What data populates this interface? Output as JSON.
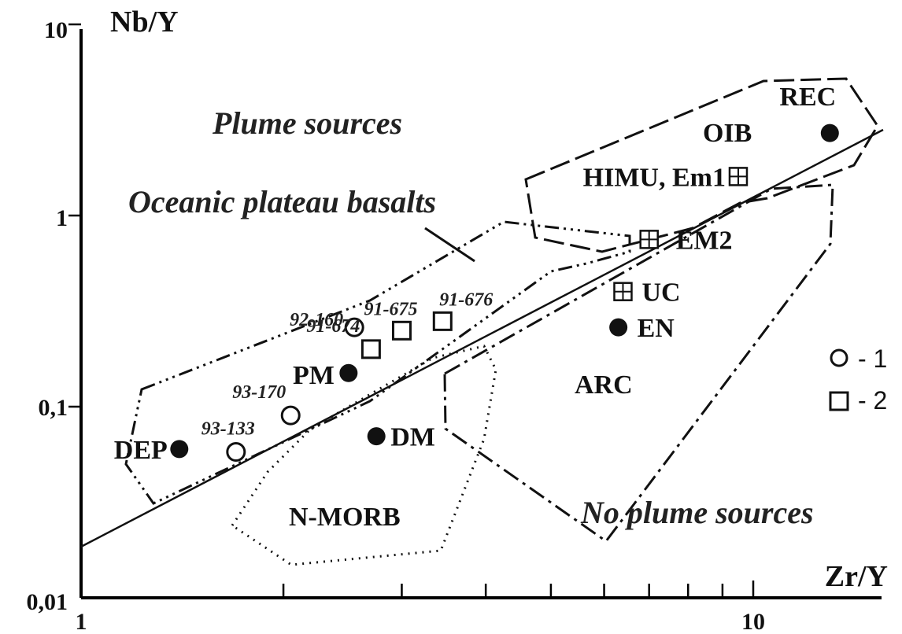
{
  "chart_data": {
    "type": "scatter",
    "xscale": "log",
    "yscale": "log",
    "xlim": [
      1,
      20
    ],
    "ylim": [
      0.01,
      10
    ],
    "xlabel": "Zr/Y",
    "ylabel": "Nb/Y",
    "x_tick_labels": [
      "1",
      "10"
    ],
    "y_tick_labels": [
      "0,01",
      "0,1",
      "1",
      "10"
    ],
    "regions": [
      {
        "label": "Plume sources"
      },
      {
        "label": "No plume sources"
      },
      {
        "label": "Oceanic plateau basalts"
      },
      {
        "label": "OIB"
      },
      {
        "label": "ARC"
      },
      {
        "label": "N-MORB"
      }
    ],
    "reference_points": [
      {
        "label": "REC",
        "x": 13.0,
        "y": 2.7
      },
      {
        "label": "EN",
        "x": 6.3,
        "y": 0.26
      },
      {
        "label": "PM",
        "x": 2.5,
        "y": 0.15
      },
      {
        "label": "DM",
        "x": 2.75,
        "y": 0.07
      },
      {
        "label": "DEP",
        "x": 1.4,
        "y": 0.06
      }
    ],
    "crust_points": [
      {
        "label": "HIMU, Em1",
        "x": 9.5,
        "y": 1.6
      },
      {
        "label": "EM2",
        "x": 7.0,
        "y": 0.75
      },
      {
        "label": "UC",
        "x": 6.4,
        "y": 0.4
      }
    ],
    "samples": [
      {
        "label": "92-160",
        "x": 2.55,
        "y": 0.26,
        "symbol": "circle"
      },
      {
        "label": "93-170",
        "x": 2.05,
        "y": 0.09,
        "symbol": "circle"
      },
      {
        "label": "93-133",
        "x": 1.7,
        "y": 0.058,
        "symbol": "circle"
      },
      {
        "label": "91-674",
        "x": 2.7,
        "y": 0.2,
        "symbol": "square"
      },
      {
        "label": "91-675",
        "x": 3.0,
        "y": 0.25,
        "symbol": "square"
      },
      {
        "label": "91-676",
        "x": 3.45,
        "y": 0.28,
        "symbol": "square"
      }
    ],
    "legend": [
      {
        "symbol": "circle",
        "label": "- 1"
      },
      {
        "symbol": "square",
        "label": "- 2"
      }
    ],
    "legend_position": "right",
    "grid": false
  }
}
